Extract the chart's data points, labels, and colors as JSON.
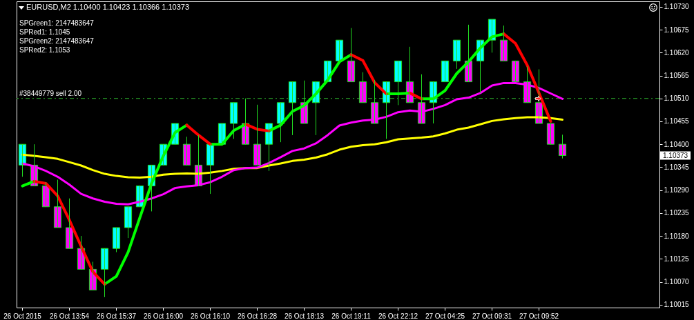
{
  "chart_data": {
    "type": "candlestick",
    "title": "EURUSD,M2 1.10400 1.10423 1.10366 1.10373",
    "categories": [
      "26 Oct 2015",
      null,
      null,
      null,
      "26 Oct 13:54",
      null,
      null,
      null,
      "26 Oct 15:37",
      null,
      null,
      null,
      "26 Oct 16:00",
      null,
      null,
      null,
      "26 Oct 16:10",
      null,
      null,
      null,
      "26 Oct 16:28",
      null,
      null,
      null,
      "26 Oct 18:13",
      null,
      null,
      null,
      "26 Oct 19:11",
      null,
      null,
      null,
      "26 Oct 22:12",
      null,
      null,
      null,
      "27 Oct 04:25",
      null,
      null,
      null,
      "27 Oct 09:31",
      null,
      null,
      null,
      "27 Oct 09:52",
      null,
      null
    ],
    "ohlc": [
      [
        1.1035,
        1.104,
        1.10322,
        1.104
      ],
      [
        1.1035,
        1.104,
        1.103,
        1.103
      ],
      [
        1.103,
        1.10309,
        1.1025,
        1.1025
      ],
      [
        1.1025,
        1.10315,
        1.102,
        1.102
      ],
      [
        1.102,
        1.1027,
        1.1015,
        1.1015
      ],
      [
        1.1015,
        1.1018,
        1.101,
        1.101
      ],
      [
        1.101,
        1.10118,
        1.1005,
        1.1005
      ],
      [
        1.101,
        1.1015,
        1.10033,
        1.1015
      ],
      [
        1.1015,
        1.102,
        1.10141,
        1.102
      ],
      [
        1.102,
        1.1025,
        1.10175,
        1.1025
      ],
      [
        1.1025,
        1.103,
        1.1025,
        1.103
      ],
      [
        1.103,
        1.1035,
        1.10239,
        1.1035
      ],
      [
        1.1035,
        1.104,
        1.1035,
        1.104
      ],
      [
        1.104,
        1.1045,
        1.104,
        1.1045
      ],
      [
        1.104,
        1.10418,
        1.1035,
        1.1035
      ],
      [
        1.1035,
        1.10422,
        1.103,
        1.103
      ],
      [
        1.1035,
        1.104,
        1.10281,
        1.104
      ],
      [
        1.104,
        1.1045,
        1.104,
        1.1045
      ],
      [
        1.1045,
        1.105,
        1.10413,
        1.105
      ],
      [
        1.1045,
        1.1051,
        1.104,
        1.104
      ],
      [
        1.104,
        1.10495,
        1.1035,
        1.1035
      ],
      [
        1.104,
        1.1045,
        1.10336,
        1.1045
      ],
      [
        1.1045,
        1.105,
        1.10405,
        1.105
      ],
      [
        1.105,
        1.1055,
        1.10422,
        1.1055
      ],
      [
        1.105,
        1.10553,
        1.1045,
        1.1045
      ],
      [
        1.105,
        1.1055,
        1.10422,
        1.1055
      ],
      [
        1.1055,
        1.106,
        1.1055,
        1.106
      ],
      [
        1.106,
        1.1065,
        1.106,
        1.1065
      ],
      [
        1.106,
        1.10679,
        1.1055,
        1.1055
      ],
      [
        1.1055,
        1.10573,
        1.105,
        1.105
      ],
      [
        1.105,
        1.10554,
        1.1045,
        1.1045
      ],
      [
        1.105,
        1.1055,
        1.10413,
        1.1055
      ],
      [
        1.1055,
        1.106,
        1.10494,
        1.106
      ],
      [
        1.1055,
        1.10634,
        1.105,
        1.105
      ],
      [
        1.105,
        1.10568,
        1.1045,
        1.1045
      ],
      [
        1.105,
        1.1055,
        1.1045,
        1.1055
      ],
      [
        1.1055,
        1.106,
        1.1055,
        1.106
      ],
      [
        1.106,
        1.1065,
        1.10581,
        1.1065
      ],
      [
        1.106,
        1.10687,
        1.1055,
        1.1055
      ],
      [
        1.106,
        1.1065,
        1.10523,
        1.1065
      ],
      [
        1.1065,
        1.107,
        1.1062,
        1.107
      ],
      [
        1.1065,
        1.10685,
        1.106,
        1.106
      ],
      [
        1.106,
        1.106,
        1.1055,
        1.1055
      ],
      [
        1.1055,
        1.10587,
        1.105,
        1.105
      ],
      [
        1.105,
        1.1058,
        1.1045,
        1.1045
      ],
      [
        1.1045,
        1.1045,
        1.104,
        1.104
      ],
      [
        1.104,
        1.10423,
        1.10366,
        1.10373
      ]
    ],
    "color": "#22dd22",
    "colors": [
      "#00ffff",
      "#ff00ff",
      "#ff00ff",
      "#ff00ff",
      "#ff00ff",
      "#ff00ff",
      "#ff00ff",
      "#00ffff",
      "#00ffff",
      "#00ffff",
      "#00ffff",
      "#00ffff",
      "#00ffff",
      "#00ffff",
      "#ff00ff",
      "#ff00ff",
      "#00ffff",
      "#00ffff",
      "#00ffff",
      "#ff00ff",
      "#ff00ff",
      "#00ffff",
      "#00ffff",
      "#00ffff",
      "#ff00ff",
      "#00ffff",
      "#00ffff",
      "#00ffff",
      "#ff00ff",
      "#ff00ff",
      "#ff00ff",
      "#00ffff",
      "#00ffff",
      "#ff00ff",
      "#ff00ff",
      "#00ffff",
      "#00ffff",
      "#00ffff",
      "#ff00ff",
      "#00ffff",
      "#00ffff",
      "#ff00ff",
      "#ff00ff",
      "#ff00ff",
      "#ff00ff",
      "#ff00ff",
      "#ff00ff"
    ],
    "series": [
      {
        "type": "line",
        "color": "#ffff00",
        "values": [
          1.10375,
          1.10372,
          1.10369,
          1.10365,
          1.10357,
          1.10349,
          1.10338,
          1.10329,
          1.10324,
          1.10321,
          1.1032,
          1.10322,
          1.10327,
          1.10329,
          1.1033,
          1.10329,
          1.10332,
          1.10336,
          1.10341,
          1.10343,
          1.10343,
          1.10349,
          1.10354,
          1.1036,
          1.10363,
          1.10368,
          1.10376,
          1.10387,
          1.10394,
          1.10398,
          1.104,
          1.10405,
          1.10412,
          1.10414,
          1.10416,
          1.10419,
          1.10426,
          1.10435,
          1.1044,
          1.10448,
          1.10456,
          1.1046,
          1.10463,
          1.10465,
          1.10465,
          1.10463,
          1.10459
        ]
      },
      {
        "type": "line",
        "color": "#ff00ff",
        "values": [
          1.10354,
          1.10347,
          1.10336,
          1.10322,
          1.10303,
          1.10281,
          1.1027,
          1.10262,
          1.10257,
          1.10256,
          1.10262,
          1.1027,
          1.1028,
          1.10295,
          1.10299,
          1.10302,
          1.10309,
          1.10322,
          1.10338,
          1.10343,
          1.10344,
          1.10355,
          1.10369,
          1.10384,
          1.1039,
          1.10402,
          1.10422,
          1.10445,
          1.10452,
          1.10457,
          1.10459,
          1.10466,
          1.10477,
          1.10481,
          1.10478,
          1.10485,
          1.10494,
          1.10508,
          1.10512,
          1.10523,
          1.10541,
          1.10547,
          1.10547,
          1.10543,
          1.10535,
          1.10522,
          1.10509
        ]
      },
      {
        "type": "line",
        "color": "#00ff00",
        "values": [
          1.103,
          1.10311,
          null,
          null,
          null,
          null,
          null,
          1.10064,
          1.10083,
          1.10141,
          1.10224,
          1.10306,
          1.10372,
          1.10428,
          1.10446,
          null,
          1.104,
          1.104,
          1.10433,
          1.10448,
          null,
          1.10432,
          1.10446,
          1.10479,
          1.10493,
          1.10521,
          1.10554,
          1.10598,
          1.10615,
          null,
          null,
          1.10521,
          1.10521,
          1.10523,
          null,
          null,
          null,
          null,
          null,
          null,
          null,
          null,
          null,
          null,
          null,
          null,
          null
        ]
      },
      {
        "type": "line",
        "color": "#00ff00",
        "values": [
          null,
          null,
          null,
          null,
          null,
          null,
          null,
          null,
          null,
          null,
          null,
          null,
          null,
          null,
          null,
          null,
          null,
          null,
          null,
          null,
          null,
          null,
          null,
          null,
          null,
          null,
          null,
          null,
          null,
          null,
          null,
          null,
          null,
          null,
          1.10509,
          1.10509,
          1.10529,
          1.1057,
          1.10598,
          1.10631,
          1.10658,
          1.10665,
          null,
          null,
          null,
          null,
          null
        ]
      },
      {
        "type": "line",
        "color": "#ff0000",
        "values": [
          null,
          1.10311,
          1.10306,
          1.10276,
          1.10218,
          1.10155,
          1.10094,
          1.10064,
          null,
          null,
          null,
          null,
          null,
          null,
          1.10446,
          1.10422,
          1.104,
          null,
          null,
          1.10448,
          1.10436,
          1.10432,
          null,
          null,
          null,
          null,
          null,
          null,
          1.10615,
          1.10601,
          1.10548,
          1.10521,
          null,
          1.10523,
          1.10509,
          null,
          null,
          null,
          null,
          null,
          null,
          1.10665,
          1.10642,
          1.1059,
          1.10523,
          1.10455,
          null
        ]
      }
    ],
    "ylim": [
      1.10008,
      1.10743
    ],
    "yticks": [
      1.10015,
      {
        "value": 1.1007,
        "label": "1.10070"
      },
      1.10125,
      {
        "value": 1.1018,
        "label": "1.10180"
      },
      1.10235,
      {
        "value": 1.1029,
        "label": "1.10290"
      },
      1.10345,
      {
        "value": 1.104,
        "label": "1.10400"
      },
      1.10455,
      {
        "value": 1.1051,
        "label": "1.10510"
      },
      1.10565,
      {
        "value": 1.1062,
        "label": "1.10620"
      },
      1.10675,
      {
        "value": 1.1073,
        "label": "1.10730"
      }
    ],
    "ref_lines": [
      {
        "axis": "y",
        "value": 1.1051,
        "label": "#38449779 sell 2.00",
        "color": "#2eb82e",
        "line_style": "dashed"
      }
    ],
    "annotations": [
      "SPGreen1: 2147483647",
      "SPRed1: 1.1045",
      "SPGreen2: 2147483647",
      "SPRed2: 1.1053",
      "1.10373"
    ]
  }
}
